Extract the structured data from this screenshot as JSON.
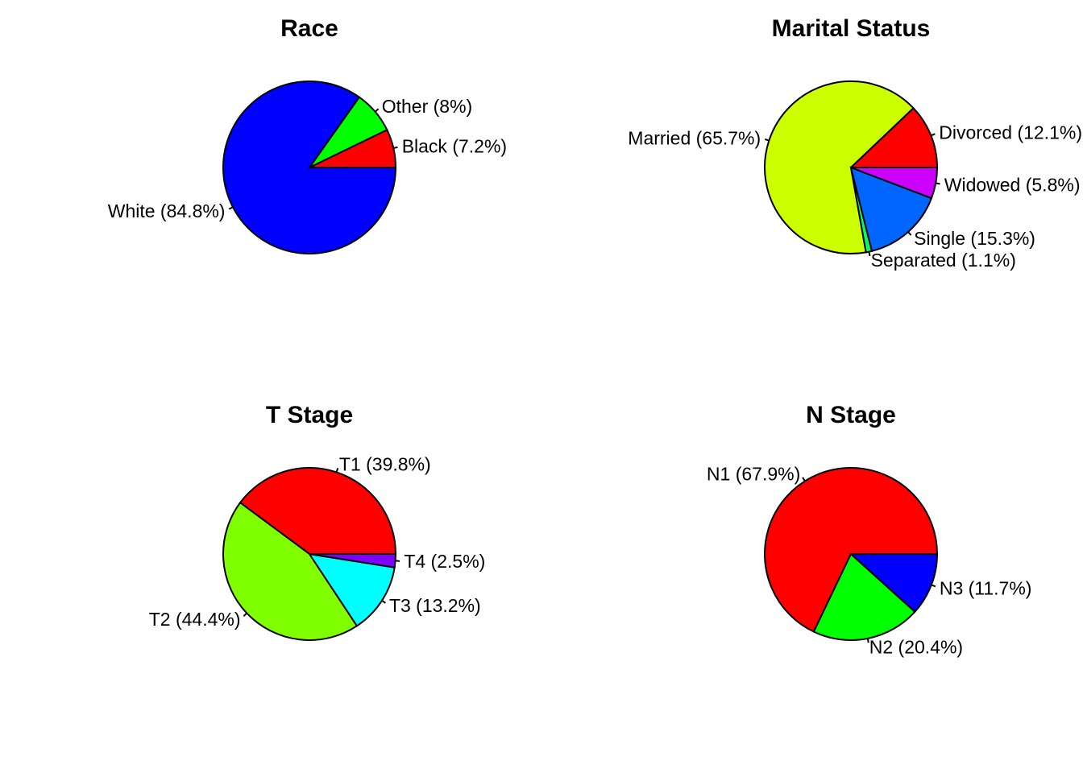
{
  "chart_data": [
    {
      "type": "pie",
      "title": "Race",
      "slices": [
        {
          "label": "Black (7.2%)",
          "value": 7.2,
          "color": "#FF0000"
        },
        {
          "label": "Other (8%)",
          "value": 8.0,
          "color": "#00FF00"
        },
        {
          "label": "White (84.8%)",
          "value": 84.8,
          "color": "#0000FF"
        }
      ]
    },
    {
      "type": "pie",
      "title": "Marital Status",
      "slices": [
        {
          "label": "Divorced (12.1%)",
          "value": 12.1,
          "color": "#FF0000"
        },
        {
          "label": "Married (65.7%)",
          "value": 65.7,
          "color": "#CCFF00"
        },
        {
          "label": "Separated (1.1%)",
          "value": 1.1,
          "color": "#00FF66"
        },
        {
          "label": "Single (15.3%)",
          "value": 15.3,
          "color": "#0066FF"
        },
        {
          "label": "Widowed (5.8%)",
          "value": 5.8,
          "color": "#CC00FF"
        }
      ]
    },
    {
      "type": "pie",
      "title": "T Stage",
      "slices": [
        {
          "label": "T1 (39.8%)",
          "value": 39.8,
          "color": "#FF0000"
        },
        {
          "label": "T2 (44.4%)",
          "value": 44.4,
          "color": "#80FF00"
        },
        {
          "label": "T3 (13.2%)",
          "value": 13.2,
          "color": "#00FFFF"
        },
        {
          "label": "T4 (2.5%)",
          "value": 2.5,
          "color": "#8000FF"
        }
      ]
    },
    {
      "type": "pie",
      "title": "N Stage",
      "slices": [
        {
          "label": "N1 (67.9%)",
          "value": 67.9,
          "color": "#FF0000"
        },
        {
          "label": "N2 (20.4%)",
          "value": 20.4,
          "color": "#00FF00"
        },
        {
          "label": "N3 (11.7%)",
          "value": 11.7,
          "color": "#0000FF"
        }
      ]
    }
  ]
}
